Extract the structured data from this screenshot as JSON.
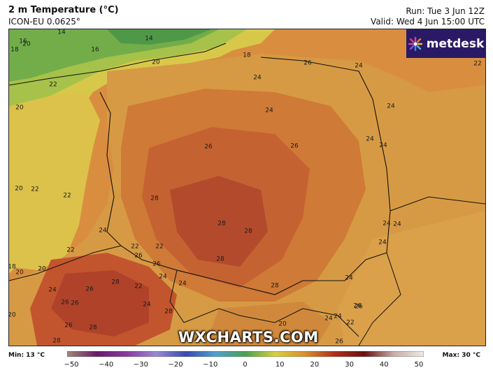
{
  "header": {
    "title": "2 m Temperature (°C)",
    "model": "ICON-EU 0.0625°",
    "run": "Run: Tue 3 Jun 12Z",
    "valid": "Valid: Wed 4 Jun 15:00 UTC"
  },
  "brand": {
    "logo_text": "metdesk",
    "watermark": "WXCHARTS.COM"
  },
  "colorbar": {
    "min_label": "Min: 13 °C",
    "max_label": "Max: 30 °C",
    "ticks": [
      "−50",
      "−40",
      "−30",
      "−20",
      "−10",
      "0",
      "10",
      "20",
      "30",
      "40",
      "50"
    ],
    "colors": [
      "#a08a76",
      "#6a1a6a",
      "#8a3aa0",
      "#9a8ad0",
      "#3a4ab0",
      "#50a0d0",
      "#4aa050",
      "#d8d040",
      "#d89030",
      "#b03018",
      "#6a1010",
      "#c8b0a8",
      "#f0e8e0"
    ]
  },
  "map_labels": [
    {
      "t": "14"
    },
    {
      "t": "14"
    },
    {
      "t": "16"
    },
    {
      "t": "18"
    },
    {
      "t": "16"
    },
    {
      "t": "20"
    },
    {
      "t": "18"
    },
    {
      "t": "20"
    },
    {
      "t": "22"
    },
    {
      "t": "20"
    },
    {
      "t": "26"
    },
    {
      "t": "24"
    },
    {
      "t": "22"
    },
    {
      "t": "24"
    },
    {
      "t": "24"
    },
    {
      "t": "24"
    },
    {
      "t": "26"
    },
    {
      "t": "26"
    },
    {
      "t": "24"
    },
    {
      "t": "24"
    },
    {
      "t": "20"
    },
    {
      "t": "22"
    },
    {
      "t": "22"
    },
    {
      "t": "28"
    },
    {
      "t": "28"
    },
    {
      "t": "24"
    },
    {
      "t": "28"
    },
    {
      "t": "28"
    },
    {
      "t": "24"
    },
    {
      "t": "24"
    },
    {
      "t": "24"
    },
    {
      "t": "22"
    },
    {
      "t": "22"
    },
    {
      "t": "22"
    },
    {
      "t": "26"
    },
    {
      "t": "26"
    },
    {
      "t": "18"
    },
    {
      "t": "20"
    },
    {
      "t": "20"
    },
    {
      "t": "28"
    },
    {
      "t": "24"
    },
    {
      "t": "24"
    },
    {
      "t": "26"
    },
    {
      "t": "28"
    },
    {
      "t": "22"
    },
    {
      "t": "26"
    },
    {
      "t": "26"
    },
    {
      "t": "28"
    },
    {
      "t": "24"
    },
    {
      "t": "24"
    },
    {
      "t": "20"
    },
    {
      "t": "26"
    },
    {
      "t": "28"
    },
    {
      "t": "24"
    },
    {
      "t": "26"
    },
    {
      "t": "28"
    },
    {
      "t": "20"
    },
    {
      "t": "24"
    },
    {
      "t": "22"
    },
    {
      "t": "26"
    },
    {
      "t": "26"
    },
    {
      "t": "24"
    }
  ]
}
